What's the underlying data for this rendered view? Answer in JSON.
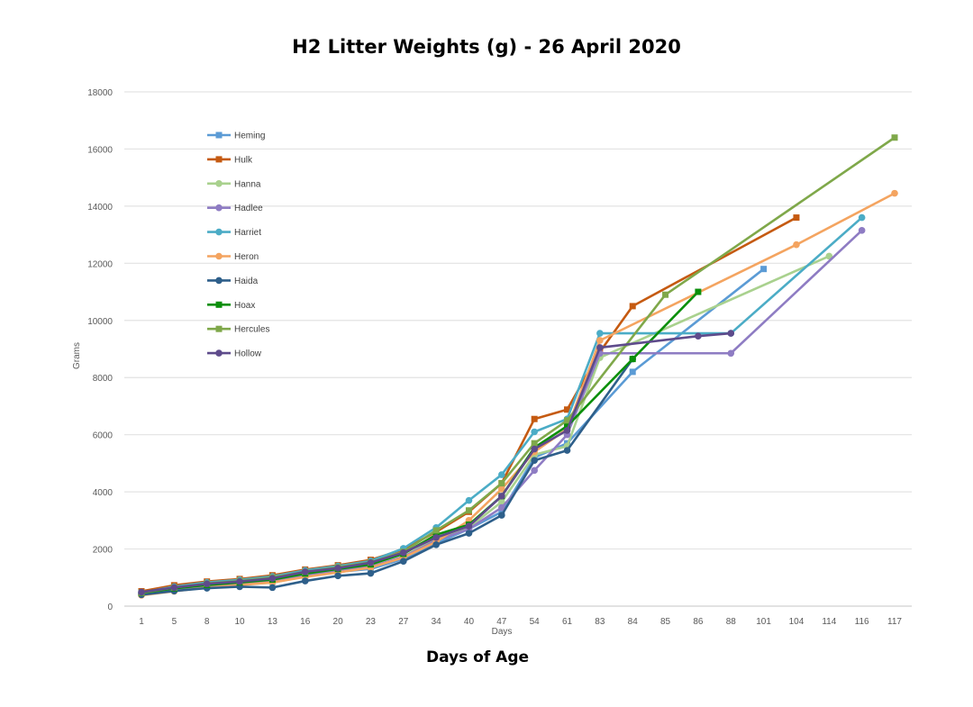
{
  "chart_data": {
    "type": "line",
    "title": "H2 Litter Weights (g) - 26 April 2020",
    "xlabel": "Days of Age",
    "xlabel_inner": "Days",
    "ylabel": "Grams",
    "ylim": [
      0,
      18000
    ],
    "yticks": [
      0,
      2000,
      4000,
      6000,
      8000,
      10000,
      12000,
      14000,
      16000,
      18000
    ],
    "grid": true,
    "legend_position": "top-left inside",
    "categories": [
      "1",
      "5",
      "8",
      "10",
      "13",
      "16",
      "20",
      "23",
      "27",
      "34",
      "40",
      "47",
      "54",
      "61",
      "83",
      "84",
      "85",
      "86",
      "88",
      "101",
      "104",
      "114",
      "116",
      "117"
    ],
    "series": [
      {
        "name": "Heming",
        "color": "#5B9BD5",
        "marker": "square",
        "values": [
          450,
          600,
          700,
          780,
          850,
          1050,
          1200,
          1300,
          1650,
          2200,
          2700,
          3300,
          5200,
          5700,
          null,
          8200,
          null,
          null,
          null,
          11800,
          null,
          null,
          null,
          null
        ]
      },
      {
        "name": "Hulk",
        "color": "#C55A11",
        "marker": "square",
        "values": [
          520,
          730,
          860,
          950,
          1080,
          1280,
          1430,
          1620,
          1980,
          2600,
          3300,
          4300,
          6550,
          6880,
          8900,
          10500,
          null,
          null,
          null,
          null,
          13600,
          null,
          null,
          null
        ]
      },
      {
        "name": "Hanna",
        "color": "#A9D18E",
        "marker": "circle",
        "values": [
          430,
          560,
          680,
          760,
          820,
          1050,
          1200,
          1350,
          1720,
          2400,
          2750,
          3650,
          5300,
          5600,
          8700,
          null,
          null,
          null,
          null,
          null,
          null,
          12250,
          null,
          null
        ]
      },
      {
        "name": "Hadlee",
        "color": "#8E7CC3",
        "marker": "circle",
        "values": [
          430,
          580,
          690,
          770,
          860,
          1090,
          1240,
          1380,
          1730,
          2300,
          2700,
          3450,
          4750,
          6000,
          8850,
          null,
          null,
          null,
          8850,
          null,
          null,
          null,
          13150,
          null
        ]
      },
      {
        "name": "Harriet",
        "color": "#4BACC6",
        "marker": "circle",
        "values": [
          470,
          680,
          830,
          920,
          1040,
          1250,
          1400,
          1580,
          2020,
          2750,
          3700,
          4600,
          6100,
          6550,
          9550,
          null,
          null,
          null,
          9550,
          null,
          null,
          null,
          13600,
          null
        ]
      },
      {
        "name": "Heron",
        "color": "#F4A460",
        "marker": "circle",
        "values": [
          380,
          520,
          650,
          740,
          830,
          1020,
          1180,
          1350,
          1700,
          2250,
          3000,
          4100,
          5400,
          6200,
          9300,
          null,
          null,
          null,
          null,
          null,
          12650,
          null,
          null,
          14450
        ]
      },
      {
        "name": "Haida",
        "color": "#2E5F8A",
        "marker": "circle",
        "values": [
          400,
          530,
          630,
          680,
          650,
          880,
          1060,
          1150,
          1570,
          2150,
          2550,
          3180,
          5100,
          5450,
          null,
          8650,
          null,
          null,
          null,
          null,
          null,
          null,
          null,
          null
        ]
      },
      {
        "name": "Hoax",
        "color": "#0A8F0A",
        "marker": "square",
        "values": [
          460,
          620,
          740,
          830,
          930,
          1140,
          1300,
          1460,
          1830,
          2500,
          2850,
          3850,
          5550,
          6300,
          null,
          8650,
          null,
          11000,
          null,
          null,
          null,
          null,
          null,
          null
        ]
      },
      {
        "name": "Hercules",
        "color": "#7FA84A",
        "marker": "square",
        "values": [
          470,
          650,
          790,
          880,
          1000,
          1200,
          1360,
          1530,
          1900,
          2650,
          3350,
          4300,
          5700,
          6500,
          null,
          null,
          10900,
          null,
          null,
          null,
          null,
          null,
          null,
          16400
        ]
      },
      {
        "name": "Hollow",
        "color": "#5E4B8B",
        "marker": "circle",
        "values": [
          490,
          650,
          780,
          860,
          970,
          1200,
          1330,
          1520,
          1870,
          2400,
          2800,
          3850,
          5500,
          6150,
          9050,
          null,
          null,
          9450,
          9550,
          null,
          null,
          null,
          null,
          null
        ]
      }
    ]
  }
}
